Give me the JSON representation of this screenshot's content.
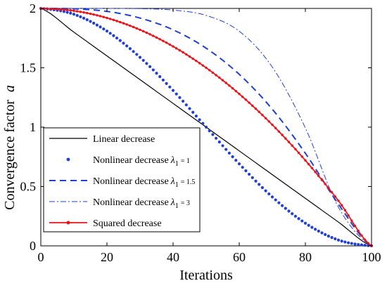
{
  "chart_data": {
    "type": "line",
    "xlabel": "Iterations",
    "ylabel": "Convergence factor",
    "ylabel_symbol": "a",
    "xlim": [
      0,
      100
    ],
    "ylim": [
      0,
      2
    ],
    "xticks": [
      "0",
      "20",
      "40",
      "60",
      "80",
      "100"
    ],
    "yticks": [
      "0",
      "0.5",
      "1",
      "1.5",
      "2"
    ],
    "grid": false,
    "legend_position": "bottom-left",
    "x": [
      0,
      10,
      20,
      30,
      40,
      50,
      60,
      70,
      80,
      90,
      100
    ],
    "series": [
      {
        "name": "Linear decrease",
        "style": "solid",
        "color": "#000000",
        "values": [
          2,
          1.8,
          1.6,
          1.4,
          1.2,
          1.0,
          0.8,
          0.6,
          0.4,
          0.2,
          0
        ]
      },
      {
        "name": "Nonlinear decrease",
        "lambda_label": "λ",
        "lambda_sub": "1",
        "lambda_value": "= 1",
        "style": "dotted",
        "color": "#1f3fd6",
        "values": [
          2,
          1.951,
          1.809,
          1.588,
          1.309,
          1.0,
          0.691,
          0.412,
          0.191,
          0.049,
          0
        ]
      },
      {
        "name": "Nonlinear decrease",
        "lambda_label": "λ",
        "lambda_sub": "1",
        "lambda_value": "= 1.5",
        "style": "dashed",
        "color": "#1f3fd6",
        "values": [
          2,
          1.997,
          1.975,
          1.919,
          1.82,
          1.665,
          1.445,
          1.151,
          0.78,
          0.351,
          0
        ]
      },
      {
        "name": "Nonlinear decrease",
        "lambda_label": "λ",
        "lambda_sub": "1",
        "lambda_value": "= 3",
        "style": "dashdot",
        "color": "#1f3fd6",
        "values": [
          2,
          2.0,
          2.0,
          1.998,
          1.986,
          1.941,
          1.808,
          1.506,
          0.993,
          0.325,
          0
        ]
      },
      {
        "name": "Squared decrease",
        "style": "solid-marker",
        "color": "#e8141a",
        "values": [
          2,
          1.98,
          1.92,
          1.82,
          1.68,
          1.5,
          1.28,
          1.02,
          0.72,
          0.38,
          0
        ]
      }
    ]
  }
}
